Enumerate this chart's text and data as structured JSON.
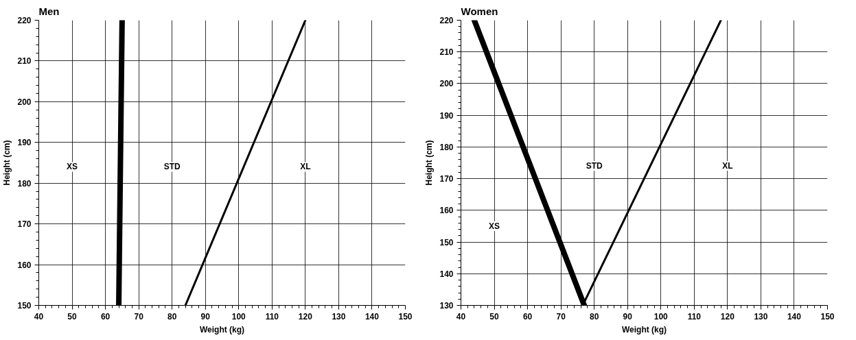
{
  "chart_data": [
    {
      "type": "line",
      "title": "Men",
      "xlabel": "Weight (kg)",
      "ylabel": "Height (cm)",
      "xlim": [
        40,
        150
      ],
      "ylim": [
        150,
        220
      ],
      "xticks": [
        40,
        50,
        60,
        70,
        80,
        90,
        100,
        110,
        120,
        130,
        140,
        150
      ],
      "yticks": [
        150,
        160,
        170,
        180,
        190,
        200,
        210,
        220
      ],
      "grid": true,
      "marker": "none",
      "line_style": "solid",
      "series": [
        {
          "color": "#000000",
          "x": [
            64,
            65
          ],
          "values": [
            150,
            220
          ]
        },
        {
          "color": "#000000",
          "x": [
            84,
            120
          ],
          "values": [
            150,
            220
          ]
        }
      ],
      "annotations": [
        {
          "text": "XS",
          "x": 50,
          "y": 184
        },
        {
          "text": "STD",
          "x": 80,
          "y": 184
        },
        {
          "text": "XL",
          "x": 120,
          "y": 184
        }
      ]
    },
    {
      "type": "line",
      "title": "Women",
      "xlabel": "Weight (kg)",
      "ylabel": "Height (cm)",
      "xlim": [
        40,
        150
      ],
      "ylim": [
        130,
        220
      ],
      "xticks": [
        40,
        50,
        60,
        70,
        80,
        90,
        100,
        110,
        120,
        130,
        140,
        150
      ],
      "yticks": [
        130,
        140,
        150,
        160,
        170,
        180,
        190,
        200,
        210,
        220
      ],
      "grid": true,
      "marker": "none",
      "line_style": "solid",
      "series": [
        {
          "color": "#000000",
          "x": [
            44,
            77
          ],
          "values": [
            220,
            130
          ]
        },
        {
          "color": "#000000",
          "x": [
            77,
            118
          ],
          "values": [
            131,
            220
          ]
        }
      ],
      "annotations": [
        {
          "text": "XS",
          "x": 50,
          "y": 155
        },
        {
          "text": "STD",
          "x": 80,
          "y": 174
        },
        {
          "text": "XL",
          "x": 120,
          "y": 174
        }
      ]
    }
  ]
}
